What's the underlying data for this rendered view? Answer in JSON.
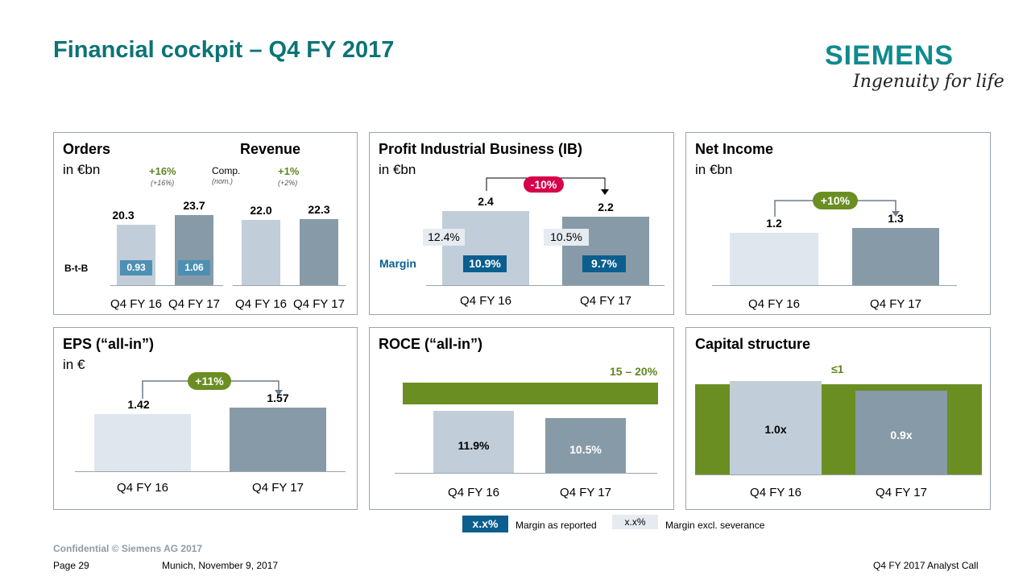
{
  "header": {
    "title": "Financial cockpit – Q4 FY 2017",
    "logo": "SIEMENS",
    "slogan": "Ingenuity for life"
  },
  "orders_revenue": {
    "orders_title": "Orders",
    "revenue_title": "Revenue",
    "unit": "in €bn",
    "orders_growth": "+16%",
    "orders_growth_sub": "(+16%)",
    "comp_label": "Comp.",
    "nom_label": "(nom.)",
    "revenue_growth": "+1%",
    "revenue_growth_sub": "(+2%)",
    "btb_label": "B-t-B",
    "btb_q4fy16": "0.93",
    "btb_q4fy17": "1.06"
  },
  "profit_ib": {
    "title": "Profit Industrial Business (IB)",
    "unit": "in €bn",
    "change": "-10%",
    "margin_label": "Margin",
    "excl_q4fy16": "12.4%",
    "excl_q4fy17": "10.5%",
    "rep_q4fy16": "10.9%",
    "rep_q4fy17": "9.7%"
  },
  "net_income": {
    "title": "Net Income",
    "unit": "in €bn",
    "change": "+10%"
  },
  "eps": {
    "title": "EPS (“all-in”)",
    "unit": "in €",
    "change": "+11%"
  },
  "roce": {
    "title": "ROCE (“all-in”)",
    "target": "15 – 20%"
  },
  "capital": {
    "title": "Capital structure",
    "target": "≤1"
  },
  "legend": {
    "rep_sample": "x.x%",
    "rep_text": "Margin as reported",
    "excl_sample": "x.x%",
    "excl_text": "Margin excl. severance"
  },
  "footer": {
    "confidential": "Confidential © Siemens AG 2017",
    "page": "Page 29",
    "place_date": "Munich, November 9, 2017",
    "event": "Q4 FY 2017 Analyst Call"
  },
  "colors": {
    "title": "#0c7377",
    "light_bar": "#c1ced9",
    "dark_bar": "#879aa7",
    "green": "#6b8e23",
    "red": "#d6004a",
    "blue": "#0b5e8e"
  },
  "chart_data": [
    {
      "type": "bar",
      "title": "Orders",
      "categories": [
        "Q4 FY 16",
        "Q4 FY 17"
      ],
      "values": [
        20.3,
        23.7
      ],
      "labels": [
        "20.3",
        "23.7"
      ],
      "ylim": [
        0,
        25
      ]
    },
    {
      "type": "bar",
      "title": "Revenue",
      "categories": [
        "Q4 FY 16",
        "Q4 FY 17"
      ],
      "values": [
        22.0,
        22.3
      ],
      "labels": [
        "22.0",
        "22.3"
      ],
      "ylim": [
        0,
        25
      ]
    },
    {
      "type": "bar",
      "title": "Profit Industrial Business (IB)",
      "categories": [
        "Q4 FY 16",
        "Q4 FY 17"
      ],
      "values": [
        2.4,
        2.2
      ],
      "labels": [
        "2.4",
        "2.2"
      ],
      "ylim": [
        0,
        2.6
      ]
    },
    {
      "type": "bar",
      "title": "Net Income",
      "categories": [
        "Q4 FY 16",
        "Q4 FY 17"
      ],
      "values": [
        1.2,
        1.3
      ],
      "labels": [
        "1.2",
        "1.3"
      ],
      "ylim": [
        0,
        2.2
      ]
    },
    {
      "type": "bar",
      "title": "EPS (“all-in”)",
      "categories": [
        "Q4 FY 16",
        "Q4 FY 17"
      ],
      "values": [
        1.42,
        1.57
      ],
      "labels": [
        "1.42",
        "1.57"
      ],
      "ylim": [
        0,
        2.4
      ]
    },
    {
      "type": "bar",
      "title": "ROCE (“all-in”)",
      "categories": [
        "Q4 FY 16",
        "Q4 FY 17"
      ],
      "values": [
        11.9,
        10.5
      ],
      "labels": [
        "11.9%",
        "10.5%"
      ],
      "target_range": [
        15,
        20
      ],
      "ylim": [
        0,
        20
      ]
    },
    {
      "type": "bar",
      "title": "Capital structure",
      "categories": [
        "Q4 FY 16",
        "Q4 FY 17"
      ],
      "values": [
        1.0,
        0.9
      ],
      "labels": [
        "1.0x",
        "0.9x"
      ],
      "target_max": 1,
      "ylim": [
        0,
        1.0
      ]
    }
  ]
}
